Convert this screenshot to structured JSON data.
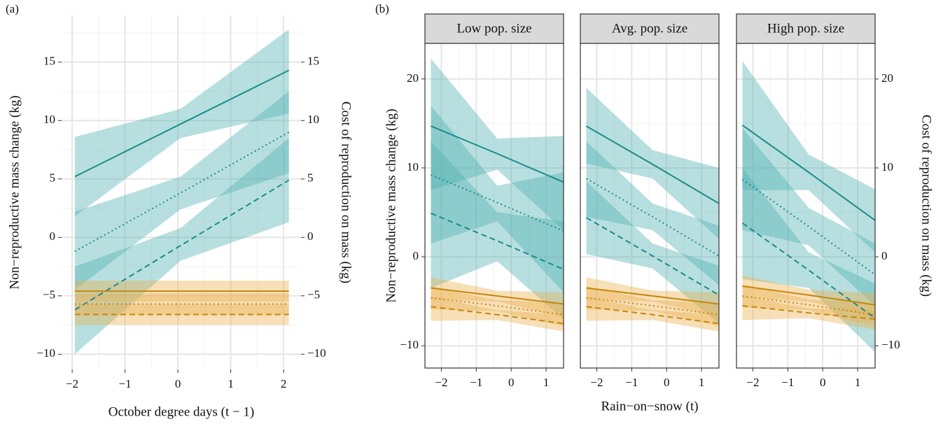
{
  "chart_data": [
    {
      "type": "line",
      "panel_label": "(a)",
      "x_label": "October degree days (t − 1)",
      "y_label": "Non−reproductive mass change (kg)",
      "y2_label": "Cost of reproduction on mass (kg)",
      "xlim": [
        -2.2,
        2.33
      ],
      "ylim": [
        -11.3,
        19
      ],
      "y2lim": [
        -11.3,
        19
      ],
      "xticks": [
        {
          "value": -2,
          "label": "−2"
        },
        {
          "value": -1,
          "label": "−1"
        },
        0,
        1,
        2
      ],
      "yticks": [
        {
          "value": -10,
          "label": "−10"
        },
        {
          "value": -5,
          "label": "−5"
        },
        0,
        5,
        10,
        15
      ],
      "y2ticks": [
        {
          "value": -10,
          "label": "−10"
        },
        {
          "value": -5,
          "label": "−5"
        },
        0,
        5,
        10,
        15
      ],
      "grid": true,
      "series": [
        {
          "color": "#1b8b8c",
          "fill": "#4db0b0",
          "dash": "solid",
          "x": [
            -1.95,
            0.05,
            2.1
          ],
          "values": [
            5.2,
            9.7,
            14.3
          ],
          "lower": [
            1.8,
            8.5,
            10.6
          ],
          "upper": [
            8.6,
            11.0,
            17.8
          ]
        },
        {
          "color": "#1b8b8c",
          "fill": "#4db0b0",
          "dash": "dotted",
          "x": [
            -1.95,
            0.05,
            2.1
          ],
          "values": [
            -1.2,
            3.8,
            9.0
          ],
          "lower": [
            -4.5,
            2.4,
            5.5
          ],
          "upper": [
            2.2,
            5.2,
            12.5
          ]
        },
        {
          "color": "#1b8b8c",
          "fill": "#4db0b0",
          "dash": "dashed",
          "x": [
            -1.95,
            0.05,
            2.1
          ],
          "values": [
            -6.2,
            -0.7,
            4.9
          ],
          "lower": [
            -10.0,
            -2.0,
            1.3
          ],
          "upper": [
            -2.5,
            0.8,
            8.5
          ]
        },
        {
          "color": "#c8860a",
          "fill": "#eab04a",
          "dash": "solid",
          "x": [
            -1.95,
            0.05,
            2.1
          ],
          "values": [
            -4.6,
            -4.6,
            -4.6
          ],
          "lower": [
            -5.5,
            -5.5,
            -5.5
          ],
          "upper": [
            -3.7,
            -3.7,
            -3.7
          ]
        },
        {
          "color": "#c8860a",
          "fill": "#eab04a",
          "dash": "dotted",
          "x": [
            -1.95,
            0.05,
            2.1
          ],
          "values": [
            -5.7,
            -5.7,
            -5.7
          ],
          "lower": [
            -6.6,
            -6.6,
            -6.6
          ],
          "upper": [
            -4.8,
            -4.8,
            -4.8
          ]
        },
        {
          "color": "#c8860a",
          "fill": "#eab04a",
          "dash": "dashed",
          "x": [
            -1.95,
            0.05,
            2.1
          ],
          "values": [
            -6.6,
            -6.6,
            -6.6
          ],
          "lower": [
            -7.5,
            -7.5,
            -7.5
          ],
          "upper": [
            -5.7,
            -5.7,
            -5.7
          ]
        }
      ]
    },
    {
      "type": "line",
      "panel_label": "(b)",
      "title": "Low pop. size",
      "x_label": "Rain−on−snow (t)",
      "y_label": "Non−reproductive mass change (kg)",
      "xlim": [
        -2.47,
        1.5
      ],
      "ylim": [
        -12.5,
        24
      ],
      "xticks": [
        {
          "value": -2,
          "label": "−2"
        },
        {
          "value": -1,
          "label": "−1"
        },
        0,
        1
      ],
      "yticks": [
        {
          "value": -10,
          "label": "−10"
        },
        0,
        10,
        20
      ],
      "grid": true,
      "series": [
        {
          "color": "#1b8b8c",
          "fill": "#4db0b0",
          "dash": "solid",
          "x": [
            -2.3,
            -0.4,
            1.5
          ],
          "values": [
            14.7,
            11.6,
            8.4
          ],
          "lower": [
            7.5,
            9.8,
            3.0
          ],
          "upper": [
            22.3,
            13.3,
            13.6
          ]
        },
        {
          "color": "#1b8b8c",
          "fill": "#4db0b0",
          "dash": "dotted",
          "x": [
            -2.3,
            -0.4,
            1.5
          ],
          "values": [
            9.2,
            6.1,
            2.9
          ],
          "lower": [
            1.5,
            4.0,
            -4.0
          ],
          "upper": [
            17.0,
            8.0,
            9.5
          ]
        },
        {
          "color": "#1b8b8c",
          "fill": "#4db0b0",
          "dash": "dashed",
          "x": [
            -2.3,
            -0.4,
            1.5
          ],
          "values": [
            4.9,
            1.8,
            -1.4
          ],
          "lower": [
            -3.5,
            -0.5,
            -7.0
          ],
          "upper": [
            13.0,
            5.0,
            4.0
          ]
        },
        {
          "color": "#c8860a",
          "fill": "#eab04a",
          "dash": "solid",
          "x": [
            -2.3,
            -0.4,
            1.5
          ],
          "values": [
            -3.5,
            -4.4,
            -5.3
          ],
          "lower": [
            -4.8,
            -5.0,
            -6.8
          ],
          "upper": [
            -2.3,
            -3.8,
            -4.0
          ]
        },
        {
          "color": "#c8860a",
          "fill": "#eab04a",
          "dash": "dotted",
          "x": [
            -2.3,
            -0.4,
            1.5
          ],
          "values": [
            -4.6,
            -5.5,
            -6.5
          ],
          "lower": [
            -5.9,
            -6.1,
            -7.8
          ],
          "upper": [
            -3.3,
            -4.9,
            -5.2
          ]
        },
        {
          "color": "#c8860a",
          "fill": "#eab04a",
          "dash": "dashed",
          "x": [
            -2.3,
            -0.4,
            1.5
          ],
          "values": [
            -5.6,
            -6.5,
            -7.5
          ],
          "lower": [
            -7.2,
            -7.1,
            -8.4
          ],
          "upper": [
            -4.5,
            -6.0,
            -6.5
          ]
        }
      ]
    },
    {
      "type": "line",
      "title": "Avg. pop. size",
      "xlim": [
        -2.47,
        1.5
      ],
      "ylim": [
        -12.5,
        24
      ],
      "xticks": [
        {
          "value": -2,
          "label": "−2"
        },
        {
          "value": -1,
          "label": "−1"
        },
        0,
        1
      ],
      "grid": true,
      "series": [
        {
          "color": "#1b8b8c",
          "fill": "#4db0b0",
          "dash": "solid",
          "x": [
            -2.3,
            -0.4,
            1.5
          ],
          "values": [
            14.7,
            10.4,
            6.0
          ],
          "lower": [
            10.5,
            8.8,
            2.0
          ],
          "upper": [
            19.0,
            12.0,
            10.0
          ]
        },
        {
          "color": "#1b8b8c",
          "fill": "#4db0b0",
          "dash": "dotted",
          "x": [
            -2.3,
            -0.4,
            1.5
          ],
          "values": [
            8.8,
            4.5,
            0.1
          ],
          "lower": [
            4.5,
            3.0,
            -3.2
          ],
          "upper": [
            13.0,
            6.0,
            3.5
          ]
        },
        {
          "color": "#1b8b8c",
          "fill": "#4db0b0",
          "dash": "dashed",
          "x": [
            -2.3,
            -0.4,
            1.5
          ],
          "values": [
            4.4,
            0.1,
            -4.3
          ],
          "lower": [
            0.3,
            -1.3,
            -7.5
          ],
          "upper": [
            8.5,
            1.5,
            -1.0
          ]
        },
        {
          "color": "#c8860a",
          "fill": "#eab04a",
          "dash": "solid",
          "x": [
            -2.3,
            -0.4,
            1.5
          ],
          "values": [
            -3.5,
            -4.4,
            -5.3
          ],
          "lower": [
            -4.8,
            -5.0,
            -6.8
          ],
          "upper": [
            -2.3,
            -3.8,
            -4.0
          ]
        },
        {
          "color": "#c8860a",
          "fill": "#eab04a",
          "dash": "dotted",
          "x": [
            -2.3,
            -0.4,
            1.5
          ],
          "values": [
            -4.6,
            -5.5,
            -6.5
          ],
          "lower": [
            -5.9,
            -6.1,
            -7.8
          ],
          "upper": [
            -3.3,
            -4.9,
            -5.2
          ]
        },
        {
          "color": "#c8860a",
          "fill": "#eab04a",
          "dash": "dashed",
          "x": [
            -2.3,
            -0.4,
            1.5
          ],
          "values": [
            -5.6,
            -6.5,
            -7.5
          ],
          "lower": [
            -7.2,
            -7.1,
            -8.4
          ],
          "upper": [
            -4.5,
            -6.0,
            -6.5
          ]
        }
      ]
    },
    {
      "type": "line",
      "title": "High pop. size",
      "y2_label": "Cost of reproduction on mass (kg)",
      "xlim": [
        -2.47,
        1.5
      ],
      "ylim": [
        -12.5,
        24
      ],
      "y2lim": [
        -12.5,
        24
      ],
      "xticks": [
        {
          "value": -2,
          "label": "−2"
        },
        {
          "value": -1,
          "label": "−1"
        },
        0,
        1
      ],
      "y2ticks": [
        {
          "value": -10,
          "label": "−10"
        },
        0,
        10,
        20
      ],
      "grid": true,
      "series": [
        {
          "color": "#1b8b8c",
          "fill": "#4db0b0",
          "dash": "solid",
          "x": [
            -2.3,
            -0.4,
            1.5
          ],
          "values": [
            14.8,
            9.5,
            4.1
          ],
          "lower": [
            7.5,
            7.5,
            0.5
          ],
          "upper": [
            22.0,
            11.5,
            7.6
          ]
        },
        {
          "color": "#1b8b8c",
          "fill": "#4db0b0",
          "dash": "dotted",
          "x": [
            -2.3,
            -0.4,
            1.5
          ],
          "values": [
            8.7,
            3.4,
            -2.0
          ],
          "lower": [
            3.0,
            1.3,
            -5.5
          ],
          "upper": [
            14.5,
            5.5,
            1.5
          ]
        },
        {
          "color": "#1b8b8c",
          "fill": "#4db0b0",
          "dash": "dashed",
          "x": [
            -2.3,
            -0.4,
            1.5
          ],
          "values": [
            3.8,
            -1.5,
            -6.9
          ],
          "lower": [
            -2.5,
            -3.5,
            -10.7
          ],
          "upper": [
            10.0,
            0.5,
            -3.0
          ]
        },
        {
          "color": "#c8860a",
          "fill": "#eab04a",
          "dash": "solid",
          "x": [
            -2.3,
            -0.4,
            1.5
          ],
          "values": [
            -3.3,
            -4.3,
            -5.4
          ],
          "lower": [
            -4.6,
            -5.0,
            -6.9
          ],
          "upper": [
            -2.1,
            -3.7,
            -4.1
          ]
        },
        {
          "color": "#c8860a",
          "fill": "#eab04a",
          "dash": "dotted",
          "x": [
            -2.3,
            -0.4,
            1.5
          ],
          "values": [
            -4.4,
            -5.4,
            -6.5
          ],
          "lower": [
            -5.7,
            -6.0,
            -7.8
          ],
          "upper": [
            -3.1,
            -4.8,
            -5.2
          ]
        },
        {
          "color": "#c8860a",
          "fill": "#eab04a",
          "dash": "dashed",
          "x": [
            -2.3,
            -0.4,
            1.5
          ],
          "values": [
            -5.5,
            -6.3,
            -7.0
          ],
          "lower": [
            -7.1,
            -6.9,
            -8.2
          ],
          "upper": [
            -4.4,
            -5.8,
            -6.0
          ]
        }
      ]
    }
  ]
}
